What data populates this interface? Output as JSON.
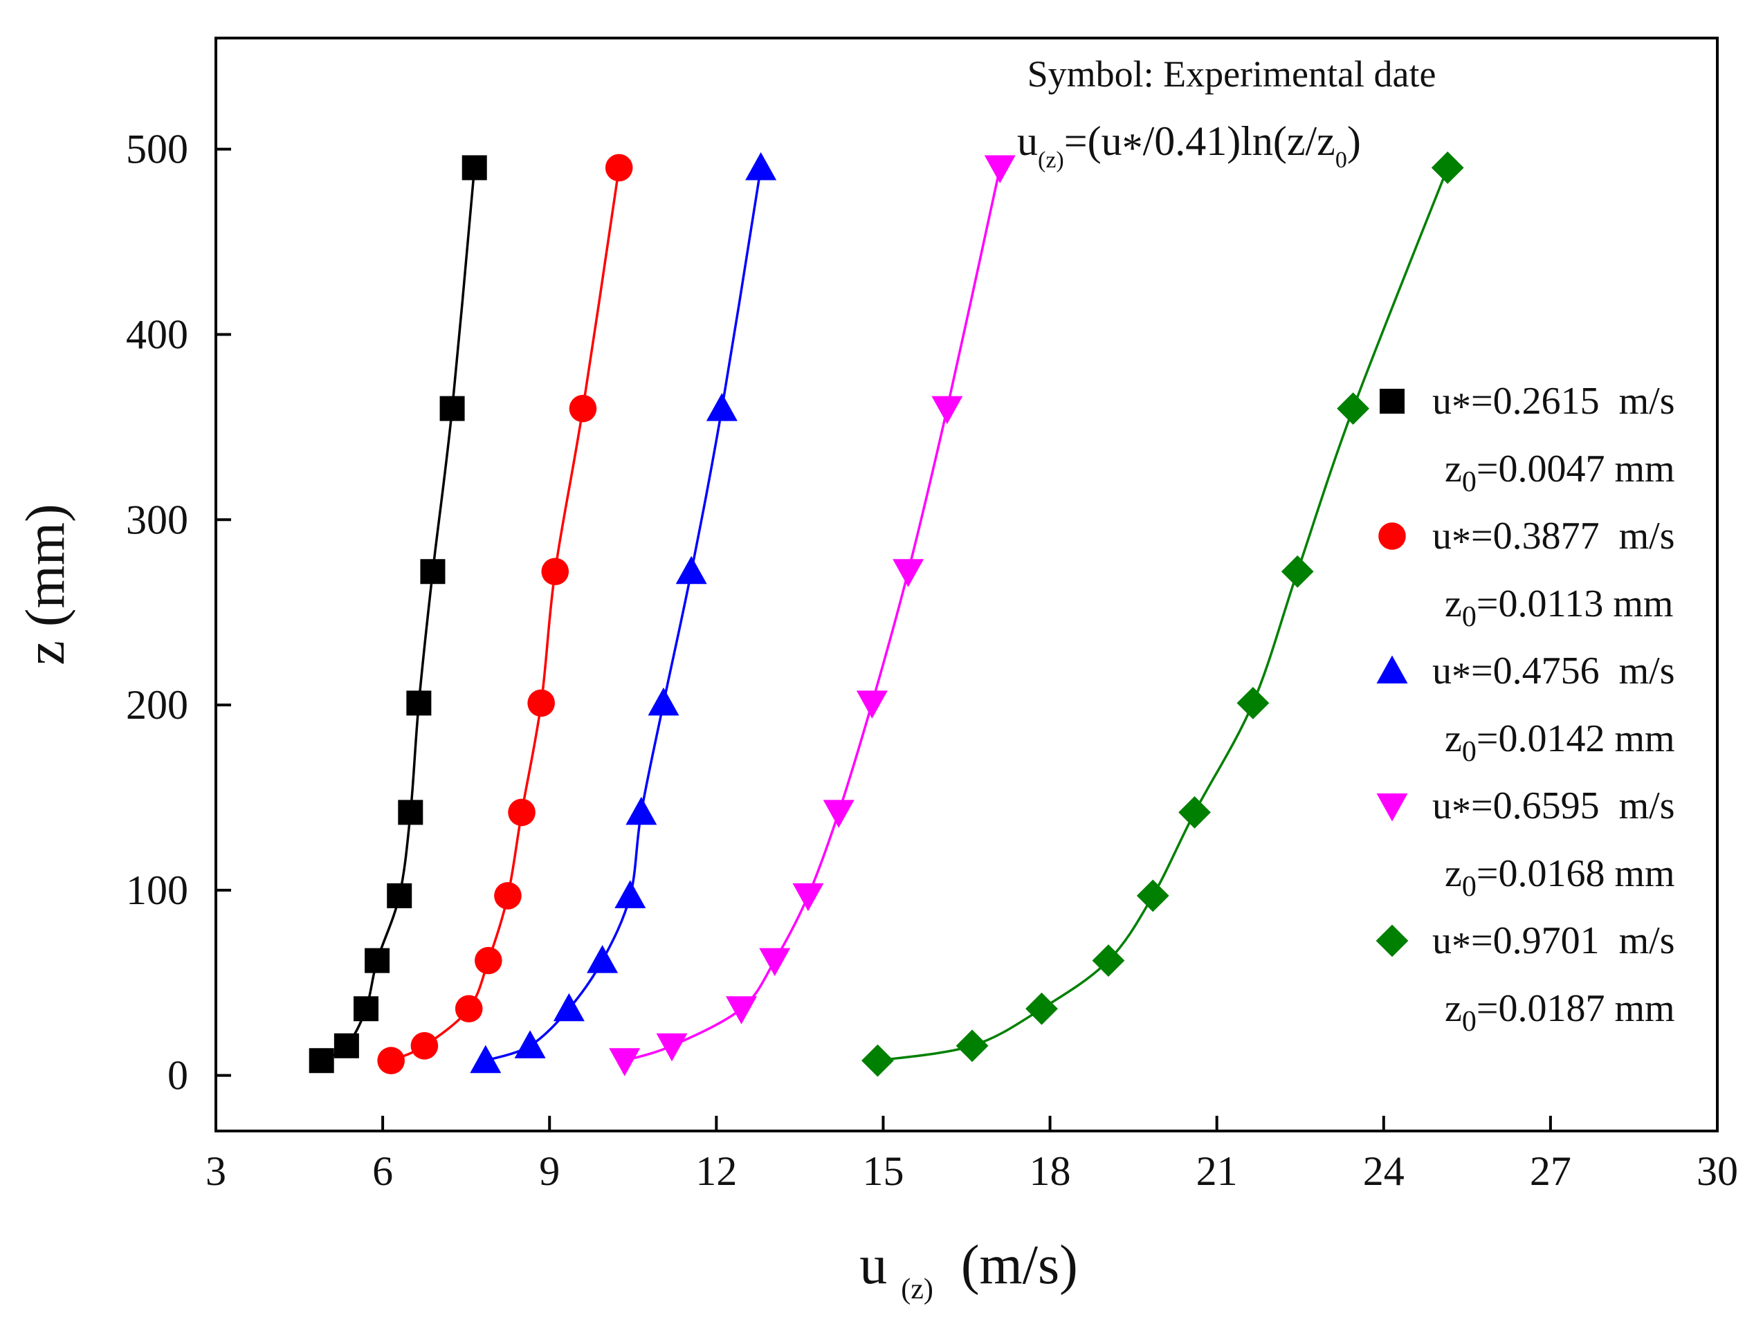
{
  "chart_data": {
    "type": "scatter",
    "title": "",
    "annotations": {
      "symbol_note": "Symbol: Experimental date",
      "formula": {
        "u": "u",
        "u_sub": "(z)",
        "mid": "=(u",
        "star": "*",
        "rest": "/0.41)ln(z/z",
        "z0_sub": "0",
        "close": ")"
      }
    },
    "xlabel": {
      "main": "u",
      "sub": "(z)",
      "unit": "(m/s)"
    },
    "ylabel": "z (mm)",
    "xlim": [
      3,
      30
    ],
    "ylim": [
      -30,
      560
    ],
    "xticks": [
      3,
      6,
      9,
      12,
      15,
      18,
      21,
      24,
      27,
      30
    ],
    "yticks": [
      0,
      100,
      200,
      300,
      400,
      500
    ],
    "grid": false,
    "legend_position": "right",
    "series": [
      {
        "name": "u*=0.2615 m/s",
        "legend_u_label": "u",
        "legend_u_star": "*",
        "legend_u_value": "=0.2615  m/s",
        "legend_z_label": "z",
        "legend_z_sub": "0",
        "legend_z_value": "=0.0047 mm",
        "u_star": 0.2615,
        "z0": 0.0047,
        "color": "#000000",
        "marker": "square",
        "x": [
          4.9,
          5.35,
          5.7,
          5.9,
          6.3,
          6.5,
          6.65,
          6.9,
          7.25,
          7.65
        ],
        "y": [
          8,
          16,
          36,
          62,
          97,
          142,
          201,
          272,
          360,
          490
        ]
      },
      {
        "name": "u*=0.3877 m/s",
        "legend_u_label": "u",
        "legend_u_star": "*",
        "legend_u_value": "=0.3877  m/s",
        "legend_z_label": "z",
        "legend_z_sub": "0",
        "legend_z_value": "=0.0113 mm",
        "u_star": 0.3877,
        "z0": 0.0113,
        "color": "#ff0000",
        "marker": "circle",
        "x": [
          6.15,
          6.75,
          7.55,
          7.9,
          8.25,
          8.5,
          8.85,
          9.1,
          9.6,
          10.25
        ],
        "y": [
          8,
          16,
          36,
          62,
          97,
          142,
          201,
          272,
          360,
          490
        ]
      },
      {
        "name": "u*=0.4756 m/s",
        "legend_u_label": "u",
        "legend_u_star": "*",
        "legend_u_value": "=0.4756  m/s",
        "legend_z_label": "z",
        "legend_z_sub": "0",
        "legend_z_value": "=0.0142 mm",
        "u_star": 0.4756,
        "z0": 0.0142,
        "color": "#0000ff",
        "marker": "triangle-up",
        "x": [
          7.85,
          8.65,
          9.35,
          9.95,
          10.45,
          10.65,
          11.05,
          11.55,
          12.1,
          12.8
        ],
        "y": [
          8,
          16,
          36,
          62,
          97,
          142,
          201,
          272,
          360,
          490
        ]
      },
      {
        "name": "u*=0.6595 m/s",
        "legend_u_label": "u",
        "legend_u_star": "*",
        "legend_u_value": "=0.6595  m/s",
        "legend_z_label": "z",
        "legend_z_sub": "0",
        "legend_z_value": "=0.0168 mm",
        "u_star": 0.6595,
        "z0": 0.0168,
        "color": "#ff00ff",
        "marker": "triangle-down",
        "x": [
          10.35,
          11.2,
          12.45,
          13.05,
          13.65,
          14.2,
          14.8,
          15.45,
          16.15,
          17.1
        ],
        "y": [
          8,
          16,
          36,
          62,
          97,
          142,
          201,
          272,
          360,
          490
        ]
      },
      {
        "name": "u*=0.9701 m/s",
        "legend_u_label": "u",
        "legend_u_star": "*",
        "legend_u_value": "=0.9701  m/s",
        "legend_z_label": "z",
        "legend_z_sub": "0",
        "legend_z_value": "=0.0187 mm",
        "u_star": 0.9701,
        "z0": 0.0187,
        "color": "#008000",
        "marker": "diamond",
        "x": [
          14.9,
          16.6,
          17.85,
          19.05,
          19.85,
          20.6,
          21.65,
          22.45,
          23.45,
          25.15
        ],
        "y": [
          8,
          16,
          36,
          62,
          97,
          142,
          201,
          272,
          360,
          490
        ]
      }
    ]
  }
}
